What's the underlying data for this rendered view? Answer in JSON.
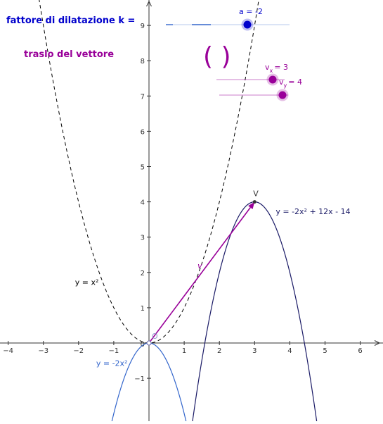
{
  "panel": {
    "dilation_label": "fattore di dilatazione k =",
    "translation_label": "traslo del vettore",
    "slider_a_label": "a = -2",
    "slider_vx_label_main": "v",
    "slider_vx_label_sub": "x",
    "slider_vx_label_val": "= 3",
    "slider_vy_label_main": "v",
    "slider_vy_label_sub": "y",
    "slider_vy_label_val": "= 4",
    "vector_paren": "( )"
  },
  "colors": {
    "axis": "#333333",
    "grid": "#000000",
    "parabola_base": "#000000",
    "parabola_dilated": "#3366cc",
    "parabola_translated": "#1a1a66",
    "vector": "#990099",
    "slider_a": "#0000cc",
    "slider_v": "#990099",
    "text_blue": "#0000cc",
    "text_purple": "#990099"
  },
  "chart_data": {
    "type": "line",
    "xlim": [
      -4.2,
      6.5
    ],
    "ylim": [
      -2.1,
      9.7
    ],
    "x_ticks": [
      -4,
      -3,
      -2,
      -1,
      0,
      1,
      2,
      3,
      4,
      5,
      6
    ],
    "y_ticks": [
      -1,
      1,
      2,
      3,
      4,
      5,
      6,
      7,
      8,
      9
    ],
    "origin_label": "0",
    "grid": false,
    "series": [
      {
        "name": "y = x²",
        "label": "y = x²",
        "a": 1,
        "b": 0,
        "c": 0,
        "style": "dashed"
      },
      {
        "name": "y = -2x²",
        "label": "y = -2x²",
        "a": -2,
        "b": 0,
        "c": 0,
        "style": "solid"
      },
      {
        "name": "y = -2x² + 12x - 14",
        "label": "y = -2x² + 12x - 14",
        "a": -2,
        "b": 12,
        "c": -14,
        "style": "solid"
      }
    ],
    "vector": {
      "from": [
        0,
        0
      ],
      "to": [
        3,
        4
      ],
      "label": "v"
    },
    "points": [
      {
        "name": "O",
        "label": "O",
        "x": 0,
        "y": 0
      },
      {
        "name": "V",
        "label": "V",
        "x": 3,
        "y": 4
      }
    ]
  }
}
